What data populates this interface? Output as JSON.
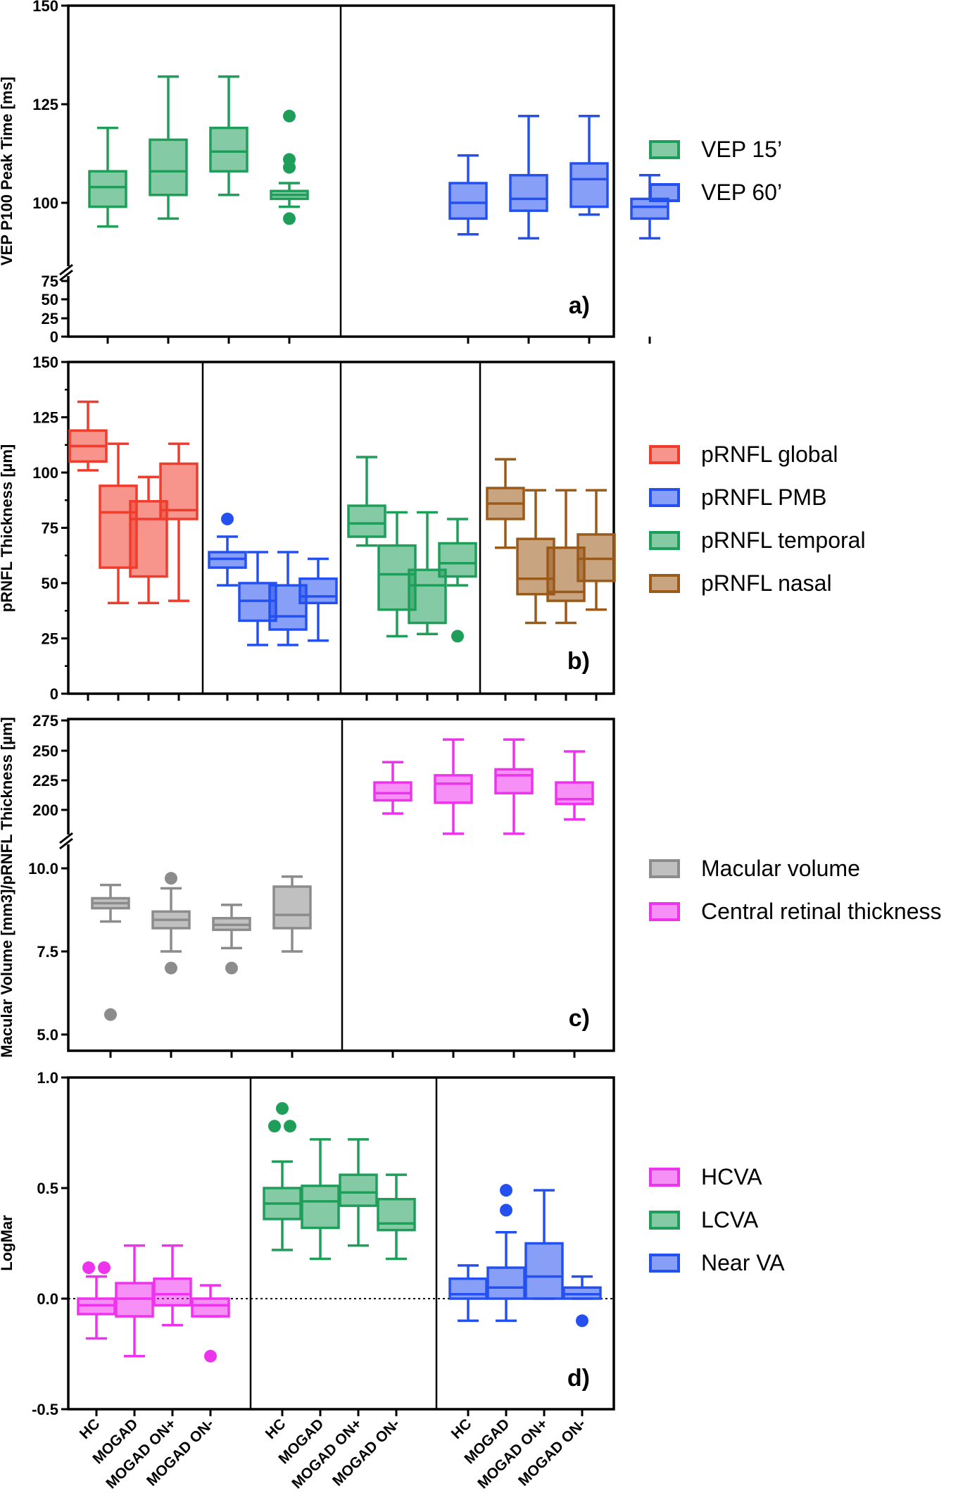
{
  "chart_data": [
    {
      "panel": "a)",
      "type": "box",
      "ylabel": "VEP P100 Peak Time [ms]",
      "yticks_upper": [
        "100",
        "125",
        "150"
      ],
      "yticks_lower": [
        "0",
        "25",
        "50",
        "75"
      ],
      "ylim": [
        0,
        150
      ],
      "axis_break": [
        75,
        90
      ],
      "legend": [
        {
          "name": "VEP 15’",
          "color": "#1f9e5a"
        },
        {
          "name": "VEP 60’",
          "color": "#2450f0"
        }
      ],
      "groups": [
        {
          "series": "VEP 15’",
          "color": "#1f9e5a",
          "boxes": [
            {
              "category": "HC",
              "min": 94,
              "q1": 99,
              "median": 104,
              "q3": 108,
              "max": 119,
              "outliers": []
            },
            {
              "category": "MOGAD",
              "min": 96,
              "q1": 102,
              "median": 108,
              "q3": 116,
              "max": 132,
              "outliers": []
            },
            {
              "category": "MOGAD ON+",
              "min": 102,
              "q1": 108,
              "median": 113,
              "q3": 119,
              "max": 132,
              "outliers": []
            },
            {
              "category": "MOGAD ON-",
              "min": 99,
              "q1": 101,
              "median": 102,
              "q3": 103,
              "max": 105,
              "outliers": [
                96,
                109,
                111,
                122
              ]
            }
          ]
        },
        {
          "series": "VEP 60’",
          "color": "#2450f0",
          "boxes": [
            {
              "category": "HC",
              "min": 92,
              "q1": 96,
              "median": 100,
              "q3": 105,
              "max": 112,
              "outliers": []
            },
            {
              "category": "MOGAD",
              "min": 91,
              "q1": 98,
              "median": 101,
              "q3": 107,
              "max": 122,
              "outliers": []
            },
            {
              "category": "MOGAD ON+",
              "min": 97,
              "q1": 99,
              "median": 106,
              "q3": 110,
              "max": 122,
              "outliers": []
            },
            {
              "category": "MOGAD ON-",
              "min": 91,
              "q1": 96,
              "median": 99,
              "q3": 101,
              "max": 107,
              "outliers": []
            }
          ]
        }
      ]
    },
    {
      "panel": "b)",
      "type": "box",
      "ylabel": "pRNFL Thickness [µm]",
      "yticks": [
        "0",
        "25",
        "50",
        "75",
        "100",
        "125",
        "150"
      ],
      "ylim": [
        0,
        150
      ],
      "legend": [
        {
          "name": "pRNFL global",
          "color": "#f03c2c"
        },
        {
          "name": "pRNFL PMB",
          "color": "#2450f0"
        },
        {
          "name": "pRNFL temporal",
          "color": "#1f9e5a"
        },
        {
          "name": "pRNFL nasal",
          "color": "#9a5a1a"
        }
      ],
      "groups": [
        {
          "series": "pRNFL global",
          "color": "#f03c2c",
          "boxes": [
            {
              "category": "HC",
              "min": 101,
              "q1": 105,
              "median": 112,
              "q3": 119,
              "max": 132,
              "outliers": []
            },
            {
              "category": "MOGAD",
              "min": 41,
              "q1": 57,
              "median": 82,
              "q3": 94,
              "max": 113,
              "outliers": []
            },
            {
              "category": "MOGAD ON+",
              "min": 41,
              "q1": 53,
              "median": 79,
              "q3": 87,
              "max": 98,
              "outliers": []
            },
            {
              "category": "MOGAD ON-",
              "min": 42,
              "q1": 79,
              "median": 83,
              "q3": 104,
              "max": 113,
              "outliers": []
            }
          ]
        },
        {
          "series": "pRNFL PMB",
          "color": "#2450f0",
          "boxes": [
            {
              "category": "HC",
              "min": 49,
              "q1": 57,
              "median": 61,
              "q3": 64,
              "max": 71,
              "outliers": [
                79
              ]
            },
            {
              "category": "MOGAD",
              "min": 22,
              "q1": 33,
              "median": 42,
              "q3": 50,
              "max": 64,
              "outliers": []
            },
            {
              "category": "MOGAD ON+",
              "min": 22,
              "q1": 29,
              "median": 35,
              "q3": 49,
              "max": 64,
              "outliers": []
            },
            {
              "category": "MOGAD ON-",
              "min": 24,
              "q1": 41,
              "median": 44,
              "q3": 52,
              "max": 61,
              "outliers": []
            }
          ]
        },
        {
          "series": "pRNFL temporal",
          "color": "#1f9e5a",
          "boxes": [
            {
              "category": "HC",
              "min": 67,
              "q1": 71,
              "median": 77,
              "q3": 85,
              "max": 107,
              "outliers": []
            },
            {
              "category": "MOGAD",
              "min": 26,
              "q1": 38,
              "median": 54,
              "q3": 67,
              "max": 82,
              "outliers": []
            },
            {
              "category": "MOGAD ON+",
              "min": 27,
              "q1": 32,
              "median": 49,
              "q3": 56,
              "max": 82,
              "outliers": []
            },
            {
              "category": "MOGAD ON-",
              "min": 49,
              "q1": 53,
              "median": 59,
              "q3": 68,
              "max": 79,
              "outliers": [
                26
              ]
            }
          ]
        },
        {
          "series": "pRNFL nasal",
          "color": "#9a5a1a",
          "boxes": [
            {
              "category": "HC",
              "min": 66,
              "q1": 79,
              "median": 86,
              "q3": 93,
              "max": 106,
              "outliers": []
            },
            {
              "category": "MOGAD",
              "min": 32,
              "q1": 45,
              "median": 52,
              "q3": 70,
              "max": 92,
              "outliers": []
            },
            {
              "category": "MOGAD ON+",
              "min": 32,
              "q1": 42,
              "median": 46,
              "q3": 66,
              "max": 92,
              "outliers": []
            },
            {
              "category": "MOGAD ON-",
              "min": 38,
              "q1": 51,
              "median": 61,
              "q3": 72,
              "max": 92,
              "outliers": []
            }
          ]
        }
      ]
    },
    {
      "panel": "c)",
      "type": "box",
      "ylabel": "Macular Volume [mm3]/pRNFL Thickness [µm]",
      "yticks_upper": [
        "200",
        "225",
        "250",
        "275"
      ],
      "yticks_lower": [
        "5.0",
        "7.5",
        "10.0"
      ],
      "legend": [
        {
          "name": "Macular volume",
          "color": "#8c8c8c"
        },
        {
          "name": "Central retinal thickness",
          "color": "#ee33ee"
        }
      ],
      "groups": [
        {
          "series": "Macular volume",
          "color": "#8c8c8c",
          "boxes": [
            {
              "category": "HC",
              "min": 8.4,
              "q1": 8.8,
              "median": 8.95,
              "q3": 9.1,
              "max": 9.5,
              "outliers": [
                5.6
              ]
            },
            {
              "category": "MOGAD",
              "min": 7.5,
              "q1": 8.2,
              "median": 8.45,
              "q3": 8.7,
              "max": 9.4,
              "outliers": [
                9.7,
                7.0
              ]
            },
            {
              "category": "MOGAD ON+",
              "min": 7.6,
              "q1": 8.15,
              "median": 8.3,
              "q3": 8.5,
              "max": 8.9,
              "outliers": [
                7.0
              ]
            },
            {
              "category": "MOGAD ON-",
              "min": 7.5,
              "q1": 8.2,
              "median": 8.6,
              "q3": 9.45,
              "max": 9.75,
              "outliers": []
            }
          ]
        },
        {
          "series": "Central retinal thickness",
          "color": "#ee33ee",
          "boxes": [
            {
              "category": "HC",
              "min": 197,
              "q1": 208,
              "median": 214,
              "q3": 223,
              "max": 240,
              "outliers": []
            },
            {
              "category": "MOGAD",
              "min": 180,
              "q1": 206,
              "median": 222,
              "q3": 229,
              "max": 259,
              "outliers": []
            },
            {
              "category": "MOGAD ON+",
              "min": 180,
              "q1": 214,
              "median": 229,
              "q3": 234,
              "max": 259,
              "outliers": []
            },
            {
              "category": "MOGAD ON-",
              "min": 192,
              "q1": 205,
              "median": 209,
              "q3": 223,
              "max": 249,
              "outliers": []
            }
          ]
        }
      ]
    },
    {
      "panel": "d)",
      "type": "box",
      "ylabel": "LogMar",
      "yticks": [
        "-0.5",
        "0.0",
        "0.5",
        "1.0"
      ],
      "ylim": [
        -0.5,
        1.0
      ],
      "reference_line": 0.0,
      "xlabels": [
        "HC",
        "MOGAD",
        "MOGAD ON+",
        "MOGAD ON-"
      ],
      "legend": [
        {
          "name": "HCVA",
          "color": "#ee33ee"
        },
        {
          "name": "LCVA",
          "color": "#1f9e5a"
        },
        {
          "name": "Near VA",
          "color": "#2450f0"
        }
      ],
      "groups": [
        {
          "series": "HCVA",
          "color": "#ee33ee",
          "boxes": [
            {
              "category": "HC",
              "min": -0.18,
              "q1": -0.07,
              "median": -0.03,
              "q3": 0.0,
              "max": 0.1,
              "outliers": [
                0.14,
                0.14
              ]
            },
            {
              "category": "MOGAD",
              "min": -0.26,
              "q1": -0.08,
              "median": 0.0,
              "q3": 0.07,
              "max": 0.24,
              "outliers": []
            },
            {
              "category": "MOGAD ON+",
              "min": -0.12,
              "q1": -0.03,
              "median": 0.02,
              "q3": 0.09,
              "max": 0.24,
              "outliers": []
            },
            {
              "category": "MOGAD ON-",
              "min": -0.08,
              "q1": -0.08,
              "median": -0.03,
              "q3": 0.0,
              "max": 0.06,
              "outliers": [
                -0.26
              ]
            }
          ]
        },
        {
          "series": "LCVA",
          "color": "#1f9e5a",
          "boxes": [
            {
              "category": "HC",
              "min": 0.22,
              "q1": 0.36,
              "median": 0.43,
              "q3": 0.5,
              "max": 0.62,
              "outliers": [
                0.78,
                0.78,
                0.86
              ]
            },
            {
              "category": "MOGAD",
              "min": 0.18,
              "q1": 0.32,
              "median": 0.44,
              "q3": 0.51,
              "max": 0.72,
              "outliers": []
            },
            {
              "category": "MOGAD ON+",
              "min": 0.24,
              "q1": 0.42,
              "median": 0.48,
              "q3": 0.56,
              "max": 0.72,
              "outliers": []
            },
            {
              "category": "MOGAD ON-",
              "min": 0.18,
              "q1": 0.31,
              "median": 0.34,
              "q3": 0.45,
              "max": 0.56,
              "outliers": []
            }
          ]
        },
        {
          "series": "Near VA",
          "color": "#2450f0",
          "boxes": [
            {
              "category": "HC",
              "min": -0.1,
              "q1": 0.0,
              "median": 0.02,
              "q3": 0.09,
              "max": 0.15,
              "outliers": []
            },
            {
              "category": "MOGAD",
              "min": -0.1,
              "q1": 0.0,
              "median": 0.05,
              "q3": 0.14,
              "max": 0.3,
              "outliers": [
                0.4,
                0.49
              ]
            },
            {
              "category": "MOGAD ON+",
              "min": 0.0,
              "q1": 0.0,
              "median": 0.1,
              "q3": 0.25,
              "max": 0.49,
              "outliers": []
            },
            {
              "category": "MOGAD ON-",
              "min": 0.0,
              "q1": 0.0,
              "median": 0.02,
              "q3": 0.05,
              "max": 0.1,
              "outliers": [
                -0.1
              ]
            }
          ]
        }
      ]
    }
  ]
}
